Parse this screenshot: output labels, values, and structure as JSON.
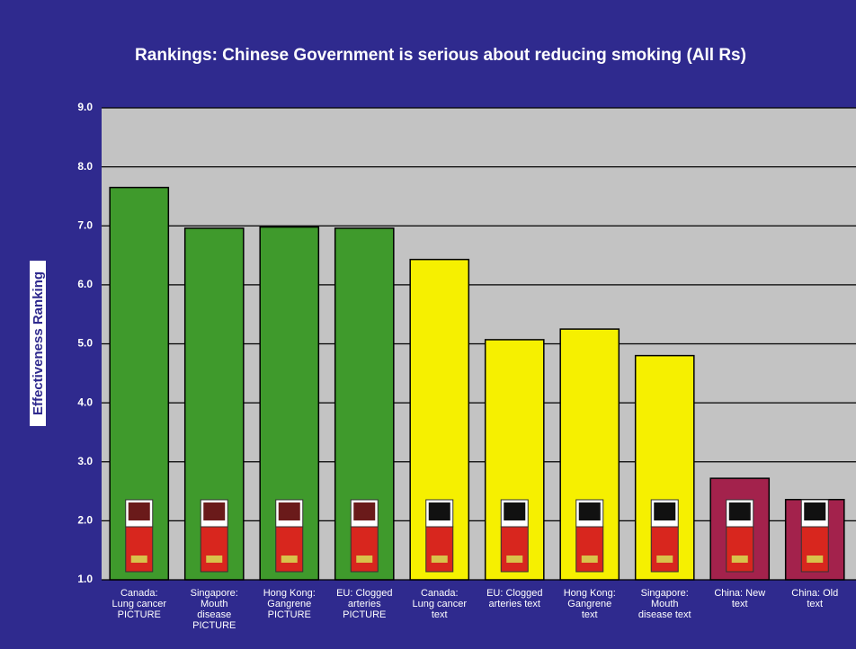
{
  "chart_data": {
    "type": "bar",
    "title": "Rankings: Chinese Government is serious about reducing smoking (All Rs)",
    "y_label": "Effectiveness Ranking",
    "categories": [
      "Canada:\nLung cancer\nPICTURE",
      "Singapore:\nMouth\ndisease\nPICTURE",
      "Hong Kong:\nGangrene\nPICTURE",
      "EU: Clogged\narteries\nPICTURE",
      "Canada:\nLung cancer\ntext",
      "EU: Clogged\narteries text",
      "Hong Kong:\nGangrene\ntext",
      "Singapore:\nMouth\ndisease text",
      "China: New\ntext",
      "China: Old\ntext"
    ],
    "values": [
      7.65,
      6.96,
      6.98,
      6.96,
      6.43,
      5.07,
      5.25,
      4.8,
      2.72,
      2.36
    ],
    "colors": [
      "#3f9a2c",
      "#3f9a2c",
      "#3f9a2c",
      "#3f9a2c",
      "#f6f000",
      "#f6f000",
      "#f6f000",
      "#f6f000",
      "#a3224c",
      "#a3224c"
    ],
    "ylim": [
      1.0,
      9.0
    ],
    "yticks": [
      {
        "value": 1,
        "label": "1.0"
      },
      {
        "value": 2,
        "label": "2.0"
      },
      {
        "value": 3,
        "label": "3.0"
      },
      {
        "value": 4,
        "label": "4.0"
      },
      {
        "value": 5,
        "label": "5.0"
      },
      {
        "value": 6,
        "label": "6.0"
      },
      {
        "value": 7,
        "label": "7.0"
      },
      {
        "value": 8,
        "label": "8.0"
      },
      {
        "value": 9,
        "label": "9.0"
      }
    ],
    "grid": true
  }
}
